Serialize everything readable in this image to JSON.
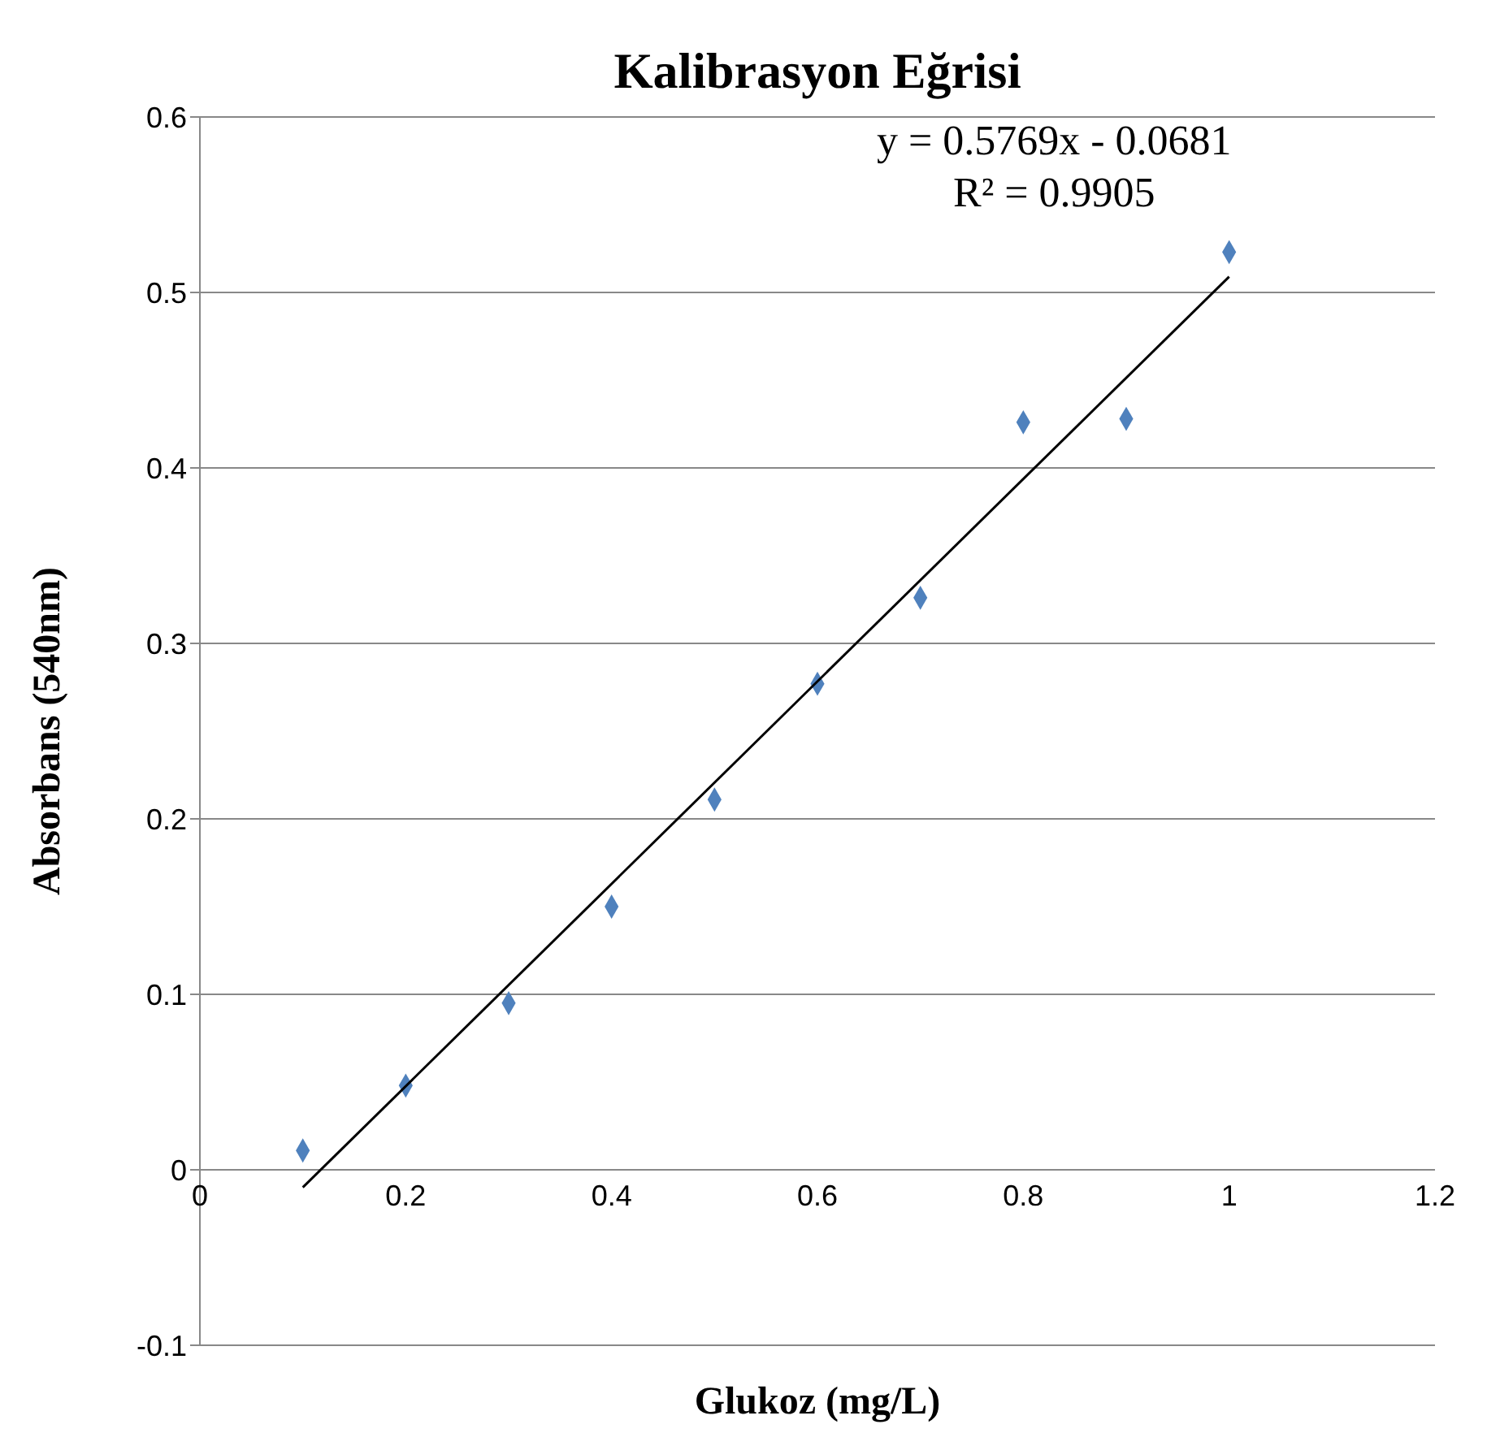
{
  "chart_data": {
    "type": "scatter",
    "title": "Kalibrasyon Eğrisi",
    "xlabel": "Glukoz (mg/L)",
    "ylabel": "Absorbans (540nm)",
    "annotations": [
      "y = 0.5769x - 0.0681",
      "R² = 0.9905"
    ],
    "series": [
      {
        "type": "scatter",
        "color": "#4f81bd",
        "marker": "diamond",
        "x": [
          0.1,
          0.2,
          0.3,
          0.4,
          0.5,
          0.6,
          0.7,
          0.8,
          0.9,
          1.0
        ],
        "values": [
          0.011,
          0.048,
          0.095,
          0.15,
          0.211,
          0.277,
          0.326,
          0.426,
          0.428,
          0.523
        ]
      },
      {
        "type": "line",
        "color": "#000000",
        "marker": "none",
        "x": [
          0.1,
          1.0
        ],
        "values": [
          -0.01,
          0.509
        ]
      }
    ],
    "xlim": [
      0,
      1.2
    ],
    "xticks": [
      0,
      0.2,
      0.4,
      0.6,
      0.8,
      1,
      1.2
    ],
    "ylim": [
      -0.1,
      0.6
    ],
    "yticks": [
      -0.1,
      0,
      0.1,
      0.2,
      0.3,
      0.4,
      0.5,
      0.6
    ],
    "grid": "y",
    "legend": false
  }
}
